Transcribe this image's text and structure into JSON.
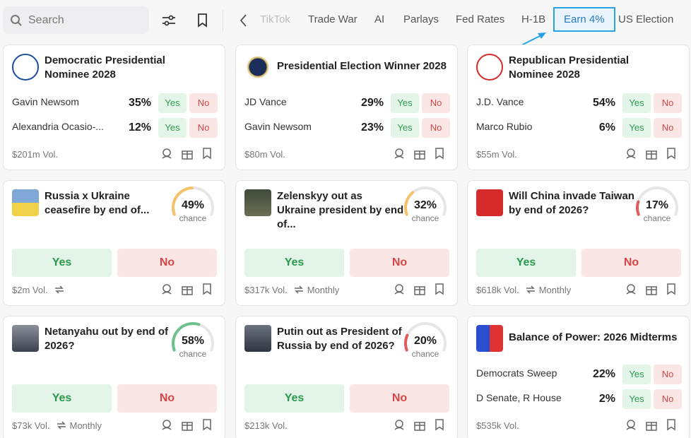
{
  "search": {
    "placeholder": "Search"
  },
  "tabs": [
    "TikTok",
    "Trade War",
    "AI",
    "Parlays",
    "Fed Rates",
    "H-1B",
    "Earn 4%",
    "US Election"
  ],
  "highlighted_tab": 6,
  "labels": {
    "yes": "Yes",
    "no": "No",
    "chance": "chance"
  },
  "cards": [
    {
      "kind": "multi",
      "title": "Democratic Presidential Nominee 2028",
      "outcomes": [
        {
          "name": "Gavin Newsom",
          "percent": "35%"
        },
        {
          "name": "Alexandria Ocasio-...",
          "percent": "12%"
        }
      ],
      "volume": "$201m Vol."
    },
    {
      "kind": "multi",
      "title": "Presidential Election Winner 2028",
      "outcomes": [
        {
          "name": "JD Vance",
          "percent": "29%"
        },
        {
          "name": "Gavin Newsom",
          "percent": "23%"
        }
      ],
      "volume": "$80m Vol."
    },
    {
      "kind": "multi",
      "title": "Republican Presidential Nominee 2028",
      "outcomes": [
        {
          "name": "J.D. Vance",
          "percent": "54%"
        },
        {
          "name": "Marco Rubio",
          "percent": "6%"
        }
      ],
      "volume": "$55m Vol."
    },
    {
      "kind": "binary",
      "title": "Russia x Ukraine ceasefire by end of...",
      "chance": {
        "value": 49,
        "label": "49%"
      },
      "gauge_color": "#f5c26b",
      "volume": "$2m Vol.",
      "repeat": true
    },
    {
      "kind": "binary",
      "title": "Zelenskyy out as Ukraine president by end of...",
      "chance": {
        "value": 32,
        "label": "32%"
      },
      "gauge_color": "#f5c26b",
      "volume": "$317k Vol.",
      "repeat": true,
      "recurrence": "Monthly"
    },
    {
      "kind": "binary",
      "title": "Will China invade Taiwan by end of 2026?",
      "chance": {
        "value": 17,
        "label": "17%"
      },
      "gauge_color": "#e25c5c",
      "volume": "$618k Vol.",
      "repeat": true,
      "recurrence": "Monthly"
    },
    {
      "kind": "binary",
      "title": "Netanyahu out by end of 2026?",
      "chance": {
        "value": 58,
        "label": "58%"
      },
      "gauge_color": "#6cc28a",
      "volume": "$73k Vol.",
      "repeat": true,
      "recurrence": "Monthly"
    },
    {
      "kind": "binary",
      "title": "Putin out as President of Russia by end of 2026?",
      "chance": {
        "value": 20,
        "label": "20%"
      },
      "gauge_color": "#e25c5c",
      "volume": "$213k Vol.",
      "repeat": false
    },
    {
      "kind": "multi",
      "title": "Balance of Power: 2026 Midterms",
      "outcomes": [
        {
          "name": "Democrats Sweep",
          "percent": "22%"
        },
        {
          "name": "D Senate, R House",
          "percent": "2%"
        }
      ],
      "volume": "$535k Vol."
    }
  ]
}
